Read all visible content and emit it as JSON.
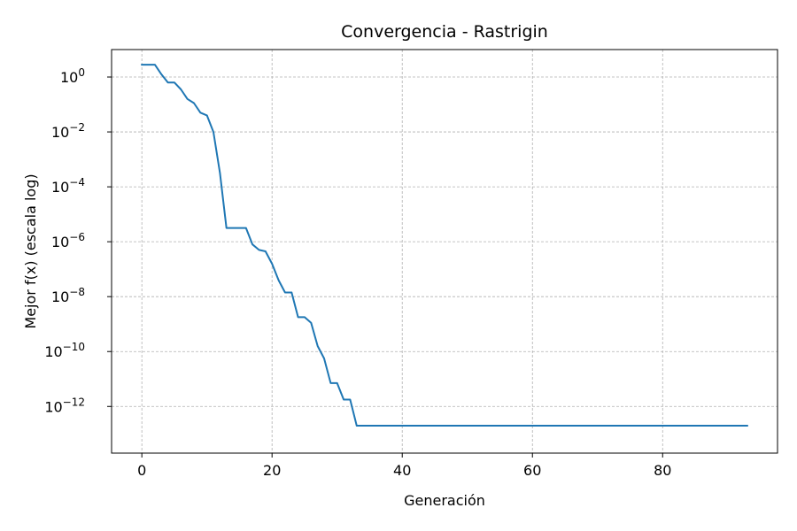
{
  "chart_data": {
    "type": "line",
    "title": "Convergencia - Rastrigin",
    "xlabel": "Generación",
    "ylabel": "Mejor f(x) (escala log)",
    "xscale": "linear",
    "yscale": "log",
    "xlim": [
      -4.65,
      97.65
    ],
    "ylim_exponent": [
      -13.7,
      1.0
    ],
    "grid": true,
    "x_ticks": [
      0,
      20,
      40,
      60,
      80
    ],
    "y_tick_exponents": [
      0,
      -2,
      -4,
      -6,
      -8,
      -10,
      -12
    ],
    "series": [
      {
        "color": "#1f77b4",
        "x": [
          0,
          1,
          2,
          3,
          4,
          5,
          6,
          7,
          8,
          9,
          10,
          11,
          12,
          13,
          14,
          15,
          16,
          17,
          18,
          19,
          20,
          21,
          22,
          23,
          24,
          25,
          26,
          27,
          28,
          29,
          30,
          31,
          32,
          33,
          34,
          35,
          36,
          37,
          38,
          39,
          40,
          41,
          42,
          43,
          44,
          45,
          46,
          47,
          48,
          49,
          50,
          51,
          52,
          53,
          54,
          55,
          56,
          57,
          58,
          59,
          60,
          61,
          62,
          63,
          64,
          65,
          66,
          67,
          68,
          69,
          70,
          71,
          72,
          73,
          74,
          75,
          76,
          77,
          78,
          79,
          80,
          81,
          82,
          83,
          84,
          85,
          86,
          87,
          88,
          89,
          90,
          91,
          92,
          93
        ],
        "log10_y": [
          0.45,
          0.45,
          0.45,
          0.1,
          -0.2,
          -0.2,
          -0.45,
          -0.8,
          -0.95,
          -1.3,
          -1.4,
          -2.0,
          -3.5,
          -5.5,
          -5.5,
          -5.5,
          -5.5,
          -6.1,
          -6.3,
          -6.35,
          -6.8,
          -7.4,
          -7.85,
          -7.85,
          -8.75,
          -8.75,
          -8.95,
          -9.8,
          -10.25,
          -11.15,
          -11.15,
          -11.75,
          -11.75,
          -12.7,
          -12.7,
          -12.7,
          -12.7,
          -12.7,
          -12.7,
          -12.7,
          -12.7,
          -12.7,
          -12.7,
          -12.7,
          -12.7,
          -12.7,
          -12.7,
          -12.7,
          -12.7,
          -12.7,
          -12.7,
          -12.7,
          -12.7,
          -12.7,
          -12.7,
          -12.7,
          -12.7,
          -12.7,
          -12.7,
          -12.7,
          -12.7,
          -12.7,
          -12.7,
          -12.7,
          -12.7,
          -12.7,
          -12.7,
          -12.7,
          -12.7,
          -12.7,
          -12.7,
          -12.7,
          -12.7,
          -12.7,
          -12.7,
          -12.7,
          -12.7,
          -12.7,
          -12.7,
          -12.7,
          -12.7,
          -12.7,
          -12.7,
          -12.7,
          -12.7,
          -12.7,
          -12.7,
          -12.7,
          -12.7,
          -12.7,
          -12.7,
          -12.7,
          -12.7,
          -12.7
        ]
      }
    ]
  }
}
